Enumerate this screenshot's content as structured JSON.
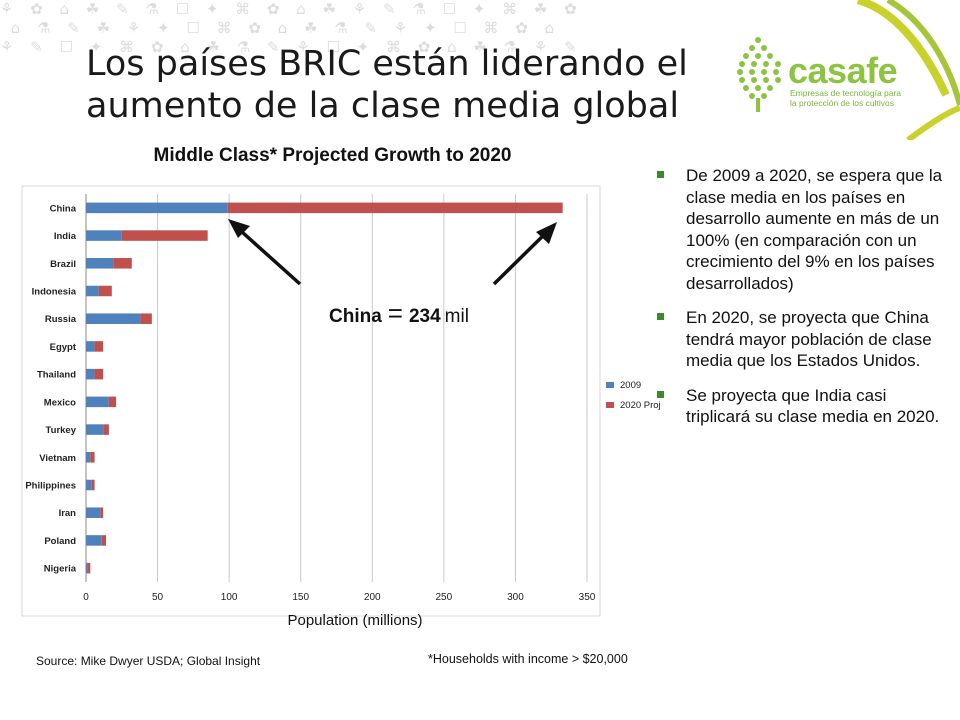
{
  "slide": {
    "title": "Los países BRIC están liderando el aumento de la clase media global"
  },
  "logo": {
    "name": "casafe",
    "tagline_line1": "Empresas de tecnología para",
    "tagline_line2": "la protección de los cultivos",
    "color": "#8cc43f"
  },
  "chart_data": {
    "type": "bar",
    "orientation": "horizontal",
    "stacked": true,
    "title": "Middle Class* Projected Growth to 2020",
    "xlabel": "Population (millions)",
    "ylabel": "",
    "xlim": [
      0,
      350
    ],
    "xticks": [
      0,
      50,
      100,
      150,
      200,
      250,
      300,
      350
    ],
    "grid": true,
    "legend_position": "right",
    "categories": [
      "China",
      "India",
      "Brazil",
      "Indonesia",
      "Russia",
      "Egypt",
      "Thailand",
      "Mexico",
      "Turkey",
      "Vietnam",
      "Philippines",
      "Iran",
      "Poland",
      "Nigeria"
    ],
    "series": [
      {
        "name": "2009",
        "color": "#4f81bd",
        "values": [
          99,
          25,
          19,
          9,
          38,
          6,
          6,
          16,
          12,
          3,
          4,
          10,
          11,
          1
        ]
      },
      {
        "name": "2020 Proj",
        "color": "#c0504d",
        "values": [
          234,
          60,
          13,
          9,
          8,
          6,
          6,
          5,
          4,
          3,
          2,
          2,
          3,
          2
        ]
      }
    ]
  },
  "annotation": {
    "country": "China",
    "equals": "=",
    "value": "234",
    "unit": "mil"
  },
  "bullets": [
    "De 2009 a 2020, se espera que la clase media en los países en desarrollo aumente en más de un 100% (en comparación con un crecimiento del 9% en los países desarrollados)",
    "En 2020, se proyecta que China  tendrá mayor población de clase media que los Estados Unidos.",
    "Se proyecta que India casi triplicará su clase media en 2020."
  ],
  "footer": {
    "source": "Source: Mike Dwyer USDA; Global Insight",
    "note": "*Households with income > $20,000"
  }
}
